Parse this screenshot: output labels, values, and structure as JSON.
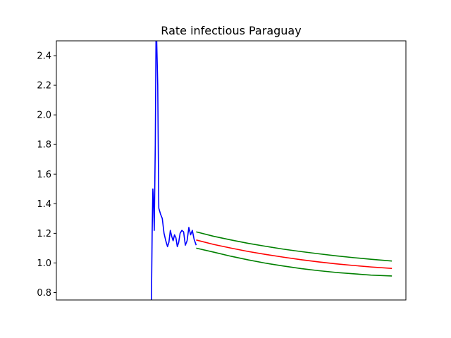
{
  "chart_data": {
    "type": "line",
    "title": "Rate infectious Paraguay",
    "xlabel": "",
    "ylabel": "",
    "xlim": [
      0,
      100
    ],
    "ylim": [
      0.75,
      2.5
    ],
    "yticks": [
      0.8,
      1.0,
      1.2,
      1.4,
      1.6,
      1.8,
      2.0,
      2.2,
      2.4
    ],
    "ytick_labels": [
      "0.8",
      "1.0",
      "1.2",
      "1.4",
      "1.6",
      "1.8",
      "2.0",
      "2.2",
      "2.4"
    ],
    "grid": false,
    "series": [
      {
        "color": "#0000ff",
        "points": [
          [
            27.2,
            0.75
          ],
          [
            27.4,
            1.2
          ],
          [
            27.6,
            1.5
          ],
          [
            27.8,
            1.42
          ],
          [
            28.0,
            1.22
          ],
          [
            28.3,
            1.8
          ],
          [
            28.5,
            2.5
          ],
          [
            28.7,
            2.5
          ],
          [
            29.0,
            2.2
          ],
          [
            29.3,
            1.37
          ],
          [
            29.8,
            1.33
          ],
          [
            30.3,
            1.3
          ],
          [
            30.8,
            1.2
          ],
          [
            31.3,
            1.15
          ],
          [
            31.8,
            1.11
          ],
          [
            32.2,
            1.14
          ],
          [
            32.6,
            1.22
          ],
          [
            33.0,
            1.18
          ],
          [
            33.4,
            1.15
          ],
          [
            33.8,
            1.19
          ],
          [
            34.2,
            1.17
          ],
          [
            34.6,
            1.11
          ],
          [
            35.0,
            1.14
          ],
          [
            35.4,
            1.2
          ],
          [
            35.9,
            1.22
          ],
          [
            36.4,
            1.21
          ],
          [
            36.9,
            1.12
          ],
          [
            37.4,
            1.15
          ],
          [
            37.9,
            1.24
          ],
          [
            38.4,
            1.19
          ],
          [
            38.9,
            1.22
          ],
          [
            39.4,
            1.16
          ],
          [
            40.0,
            1.12
          ]
        ]
      },
      {
        "color": "#ff0000",
        "points": [
          [
            40,
            1.155
          ],
          [
            45,
            1.125
          ],
          [
            50,
            1.1
          ],
          [
            55,
            1.077
          ],
          [
            60,
            1.057
          ],
          [
            65,
            1.039
          ],
          [
            70,
            1.022
          ],
          [
            75,
            1.007
          ],
          [
            80,
            0.994
          ],
          [
            85,
            0.983
          ],
          [
            90,
            0.973
          ],
          [
            96,
            0.963
          ]
        ]
      },
      {
        "color": "#008000",
        "points": [
          [
            40,
            1.21
          ],
          [
            45,
            1.18
          ],
          [
            50,
            1.155
          ],
          [
            55,
            1.132
          ],
          [
            60,
            1.112
          ],
          [
            65,
            1.093
          ],
          [
            70,
            1.077
          ],
          [
            75,
            1.062
          ],
          [
            80,
            1.048
          ],
          [
            85,
            1.036
          ],
          [
            90,
            1.025
          ],
          [
            96,
            1.013
          ]
        ]
      },
      {
        "color": "#008000",
        "points": [
          [
            40,
            1.1
          ],
          [
            45,
            1.073
          ],
          [
            50,
            1.045
          ],
          [
            55,
            1.02
          ],
          [
            60,
            0.998
          ],
          [
            65,
            0.979
          ],
          [
            70,
            0.962
          ],
          [
            75,
            0.948
          ],
          [
            80,
            0.936
          ],
          [
            85,
            0.927
          ],
          [
            90,
            0.918
          ],
          [
            96,
            0.912
          ]
        ]
      }
    ]
  }
}
